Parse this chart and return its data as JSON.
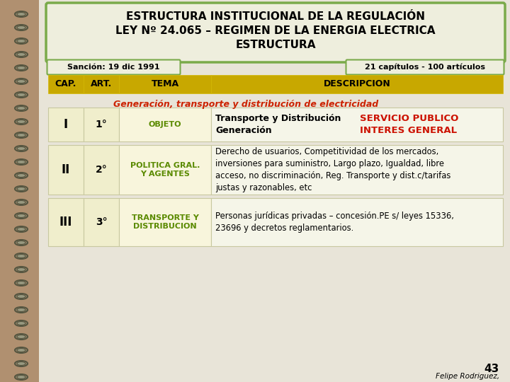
{
  "title_line1": "ESTRUCTURA INSTITUCIONAL DE LA REGULACIÓN",
  "title_line2": "LEY Nº 24.065 – REGIMEN DE LA ENERGIA ELECTRICA",
  "title_line3": "ESTRUCTURA",
  "sancion": "Sanción: 19 dic 1991",
  "chapters": "21 capítulos - 100 artículos",
  "col_headers": [
    "CAP.",
    "ART.",
    "TEMA",
    "DESCRIPCION"
  ],
  "subtitle": "Generación, transporte y distribución de electricidad",
  "rows": [
    {
      "cap": "I",
      "art": "1°",
      "tema": "OBJETO",
      "desc_left": "Transporte y Distribución\nGeneración",
      "desc_right": "SERVICIO PUBLICO\nINTERES GENERAL"
    },
    {
      "cap": "II",
      "art": "2°",
      "tema": "POLITICA GRAL.\nY AGENTES",
      "desc_left": "Derecho de usuarios, Competitividad de los mercados,\ninversiones para suministro, Largo plazo, Igualdad, libre\nacceso, no discriminación, Reg. Transporte y dist.c/tarifas\njustas y razonables, etc",
      "desc_right": ""
    },
    {
      "cap": "III",
      "art": "3°",
      "tema": "TRANSPORTE Y\nDISTRIBUCION",
      "desc_left": "Personas jurídicas privadas – concesión.PE s/ leyes 15336,\n23696 y decretos reglamentarios.",
      "desc_right": ""
    }
  ],
  "bg_color": "#b09070",
  "page_color": "#e8e4d8",
  "title_box_color": "#eeeedd",
  "title_border_color": "#7aaa4a",
  "header_color": "#c8a800",
  "row_light": "#f5f5e8",
  "row_cap_color": "#f0eecc",
  "tema_text_color": "#5a8a00",
  "red_text_color": "#cc1100",
  "subtitle_color": "#cc2200",
  "page_num": "43",
  "author": "Felipe Rodriguez,"
}
